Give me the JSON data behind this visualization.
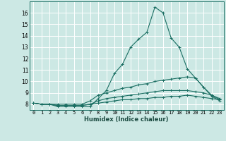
{
  "xlabel": "Humidex (Indice chaleur)",
  "bg_color": "#cce8e4",
  "line_color": "#1a6e62",
  "grid_color": "#ffffff",
  "xlim": [
    -0.5,
    23.5
  ],
  "ylim": [
    7.5,
    17.0
  ],
  "yticks": [
    8,
    9,
    10,
    11,
    12,
    13,
    14,
    15,
    16
  ],
  "xticks": [
    0,
    1,
    2,
    3,
    4,
    5,
    6,
    7,
    8,
    9,
    10,
    11,
    12,
    13,
    14,
    15,
    16,
    17,
    18,
    19,
    20,
    21,
    22,
    23
  ],
  "series": [
    [
      8.1,
      8.0,
      8.0,
      7.8,
      7.8,
      7.8,
      7.8,
      7.8,
      8.5,
      9.2,
      10.7,
      11.5,
      13.0,
      13.7,
      14.3,
      16.5,
      16.0,
      13.8,
      13.0,
      11.1,
      10.3,
      9.5,
      8.8,
      8.4
    ],
    [
      8.1,
      8.0,
      8.0,
      8.0,
      8.0,
      8.0,
      8.0,
      8.3,
      8.8,
      9.0,
      9.2,
      9.4,
      9.5,
      9.7,
      9.8,
      10.0,
      10.1,
      10.2,
      10.3,
      10.4,
      10.3,
      9.5,
      8.7,
      8.3
    ],
    [
      8.1,
      8.0,
      8.0,
      7.9,
      7.9,
      7.9,
      7.9,
      8.0,
      8.3,
      8.5,
      8.6,
      8.7,
      8.8,
      8.9,
      9.0,
      9.1,
      9.2,
      9.2,
      9.2,
      9.2,
      9.1,
      9.0,
      8.8,
      8.5
    ],
    [
      8.1,
      8.0,
      8.0,
      7.9,
      7.9,
      7.9,
      7.9,
      8.0,
      8.1,
      8.2,
      8.3,
      8.4,
      8.4,
      8.5,
      8.5,
      8.6,
      8.6,
      8.7,
      8.7,
      8.8,
      8.7,
      8.6,
      8.5,
      8.4
    ]
  ],
  "xlabel_fontsize": 6.0,
  "tick_fontsize": 5.0,
  "ytick_fontsize": 5.5
}
